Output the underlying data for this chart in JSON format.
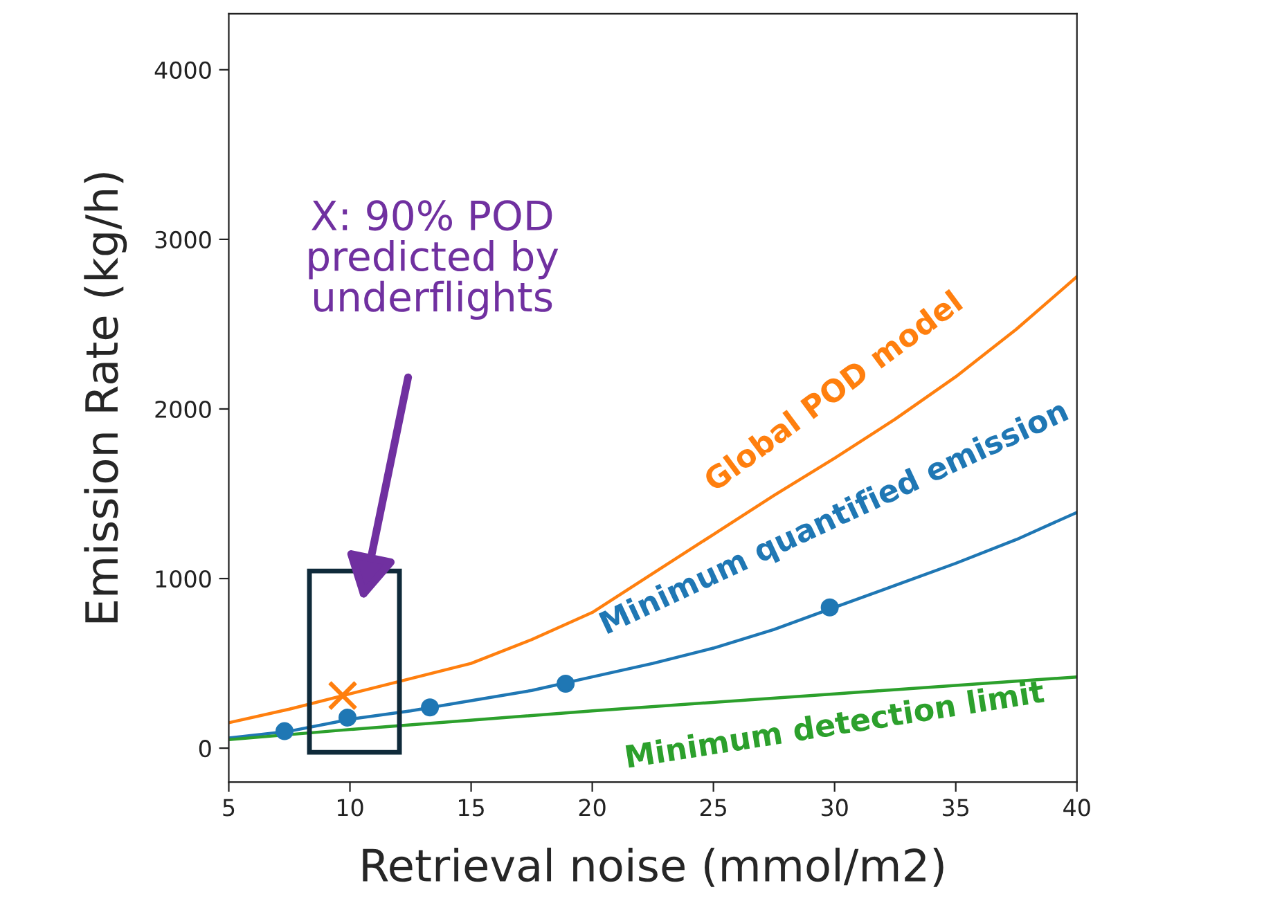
{
  "chart_data": {
    "type": "line",
    "xlabel": "Retrieval noise (mmol/m2)",
    "ylabel": "Emission Rate (kg/h)",
    "xlim": [
      5,
      40
    ],
    "xticks": [
      5,
      10,
      15,
      20,
      25,
      30,
      35,
      40
    ],
    "ylim": [
      -200,
      4330
    ],
    "yticks": [
      0,
      1000,
      2000,
      3000,
      4000
    ],
    "grid": false,
    "legend": false,
    "series": [
      {
        "name": "Global POD model",
        "color": "#ff7f0e",
        "marker": "none",
        "x": [
          5,
          7.5,
          10,
          12.5,
          15,
          17.5,
          20,
          22.5,
          25,
          27.5,
          30,
          32.5,
          35,
          37.5,
          40
        ],
        "values": [
          150,
          230,
          320,
          410,
          500,
          640,
          800,
          1030,
          1260,
          1490,
          1710,
          1940,
          2190,
          2470,
          2780
        ]
      },
      {
        "name": "Minimum quantified emission",
        "color": "#1f77b4",
        "marker": "none",
        "x": [
          5,
          7.5,
          10,
          12.5,
          15,
          17.5,
          20,
          22.5,
          25,
          27.5,
          30,
          32.5,
          35,
          37.5,
          40
        ],
        "values": [
          60,
          100,
          170,
          220,
          280,
          340,
          420,
          500,
          590,
          700,
          830,
          960,
          1090,
          1230,
          1390
        ]
      },
      {
        "type": "scatter",
        "color": "#1f77b4",
        "marker": "circle",
        "x": [
          7.3,
          9.9,
          13.3,
          18.9,
          29.8
        ],
        "values": [
          100,
          180,
          240,
          380,
          830
        ]
      },
      {
        "name": "Minimum detection limit",
        "color": "#2ca02c",
        "marker": "none",
        "x": [
          5,
          10,
          20,
          30,
          40
        ],
        "values": [
          50,
          110,
          220,
          320,
          420
        ]
      },
      {
        "type": "scatter",
        "color": "#ff7f0e",
        "marker": "cross",
        "x": [
          9.7
        ],
        "values": [
          310
        ]
      }
    ],
    "annotations": [
      "X: 90% POD\npredicted by\nunderflights"
    ]
  }
}
